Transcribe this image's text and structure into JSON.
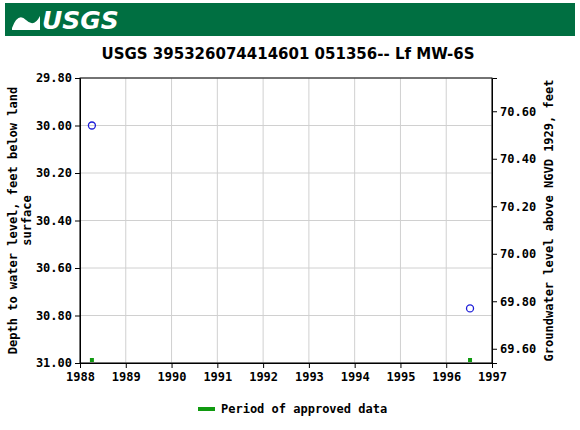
{
  "header": {
    "logo": "USGS"
  },
  "chart_data": {
    "type": "scatter",
    "title": "USGS 395326074414601 051356-- Lf MW-6S",
    "y_label": "Depth to water level, feet below land surface",
    "y2_label": "Groundwater level above NGVD 1929, feet",
    "xlim": [
      1988,
      1997
    ],
    "xticks": [
      1988,
      1989,
      1990,
      1991,
      1992,
      1993,
      1994,
      1995,
      1996,
      1997
    ],
    "ylim": [
      31.0,
      29.8
    ],
    "yticks": [
      {
        "value": 29.8,
        "label": "29.80"
      },
      {
        "value": 30.0,
        "label": "30.00"
      },
      {
        "value": 30.2,
        "label": "30.20"
      },
      {
        "value": 30.4,
        "label": "30.40"
      },
      {
        "value": 30.6,
        "label": "30.60"
      },
      {
        "value": 30.8,
        "label": "30.80"
      },
      {
        "value": 31.0,
        "label": "31.00"
      }
    ],
    "y2lim": [
      69.54,
      70.74
    ],
    "y2ticks": [
      {
        "value": 69.6,
        "label": "69.60"
      },
      {
        "value": 69.8,
        "label": "69.80"
      },
      {
        "value": 70.0,
        "label": "70.00"
      },
      {
        "value": 70.2,
        "label": "70.20"
      },
      {
        "value": 70.4,
        "label": "70.40"
      },
      {
        "value": 70.6,
        "label": "70.60"
      }
    ],
    "grid": true,
    "series": [
      {
        "color": "#1c1cd8",
        "marker": "circle-open",
        "x": [
          1988.26,
          1996.52
        ],
        "values": [
          30.0,
          30.77
        ]
      }
    ],
    "approved_periods": {
      "name": "Period of approved data",
      "color": "#109a10",
      "periods": [
        [
          1988.26,
          1988.26
        ],
        [
          1996.52,
          1996.52
        ]
      ]
    }
  }
}
